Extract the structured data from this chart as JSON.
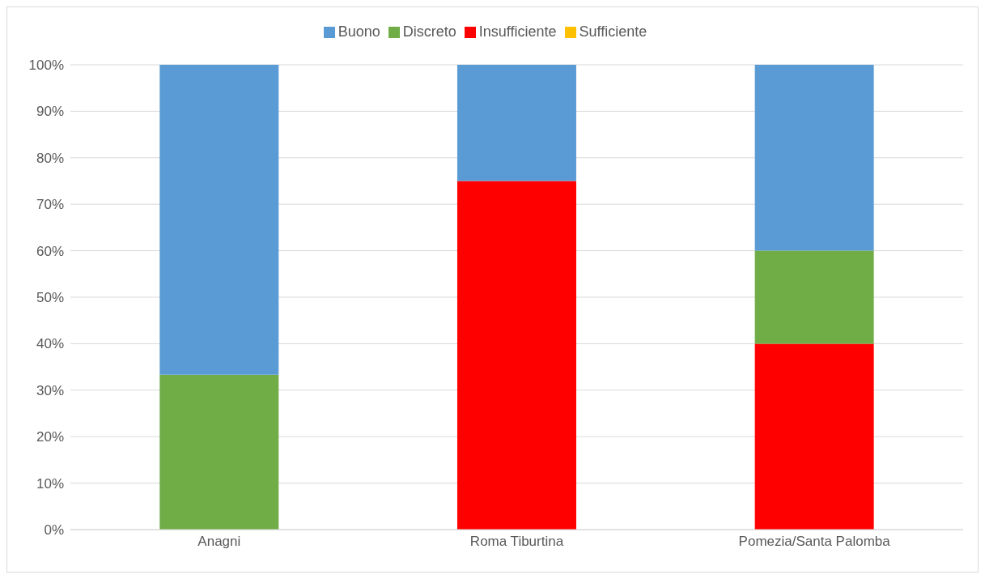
{
  "chart_data": {
    "type": "bar",
    "stacked": true,
    "categories": [
      "Anagni",
      "Roma Tiburtina",
      "Pomezia/Santa Palomba"
    ],
    "series": [
      {
        "name": "Insufficiente",
        "color": "#ff0000",
        "values": [
          0,
          75,
          40
        ]
      },
      {
        "name": "Sufficiente",
        "color": "#ffc000",
        "values": [
          0,
          0,
          0
        ]
      },
      {
        "name": "Discreto",
        "color": "#70ad47",
        "values": [
          33.3,
          0,
          20
        ]
      },
      {
        "name": "Buono",
        "color": "#5b9bd5",
        "values": [
          66.7,
          25,
          40
        ]
      }
    ],
    "ylim": [
      0,
      100
    ],
    "yticks": [
      {
        "value": 0,
        "label": "0%"
      },
      {
        "value": 10,
        "label": "10%"
      },
      {
        "value": 20,
        "label": "20%"
      },
      {
        "value": 30,
        "label": "30%"
      },
      {
        "value": 40,
        "label": "40%"
      },
      {
        "value": 50,
        "label": "50%"
      },
      {
        "value": 60,
        "label": "60%"
      },
      {
        "value": 70,
        "label": "70%"
      },
      {
        "value": 80,
        "label": "80%"
      },
      {
        "value": 90,
        "label": "90%"
      },
      {
        "value": 100,
        "label": "100%"
      }
    ],
    "grid": "y",
    "legend": "top"
  }
}
